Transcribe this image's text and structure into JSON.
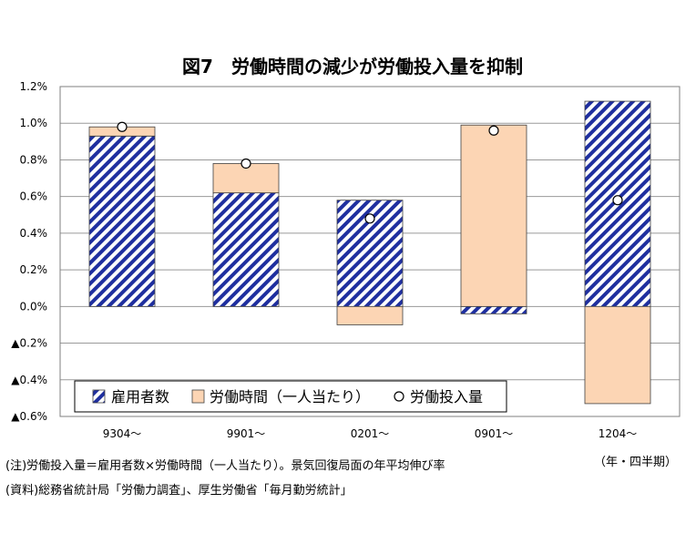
{
  "chart_data": {
    "type": "bar",
    "title": "図7　労働時間の減少が労働投入量を抑制",
    "categories": [
      "9304～",
      "9901～",
      "0201～",
      "0901～",
      "1204～"
    ],
    "series": [
      {
        "name": "雇用者数",
        "values": [
          0.93,
          0.62,
          0.58,
          -0.04,
          1.12
        ],
        "color": "#1f2f9f",
        "pattern": "diagonal-stripes"
      },
      {
        "name": "労働時間（一人当たり）",
        "values": [
          0.05,
          0.16,
          -0.1,
          0.99,
          -0.53
        ],
        "color": "#fcd5b4"
      },
      {
        "name": "労働投入量",
        "values": [
          0.98,
          0.78,
          0.48,
          0.96,
          0.58
        ],
        "marker": "circle"
      }
    ],
    "ylim": [
      -0.6,
      1.2
    ],
    "yticks": [
      1.2,
      1.0,
      0.8,
      0.6,
      0.4,
      0.2,
      0.0,
      -0.2,
      -0.4,
      -0.6
    ],
    "ytick_labels": [
      "1.2%",
      "1.0%",
      "0.8%",
      "0.6%",
      "0.4%",
      "0.2%",
      "0.0%",
      "▲0.2%",
      "▲0.4%",
      "▲0.6%"
    ],
    "grid": true,
    "legend_position": "bottom-left inside"
  },
  "x_unit": "（年・四半期）",
  "notes": [
    "(注)労働投入量＝雇用者数×労働時間（一人当たり）。景気回復局面の年平均伸び率",
    "(資料)総務省統計局「労働力調査」、厚生労働省「毎月勤労統計」"
  ]
}
